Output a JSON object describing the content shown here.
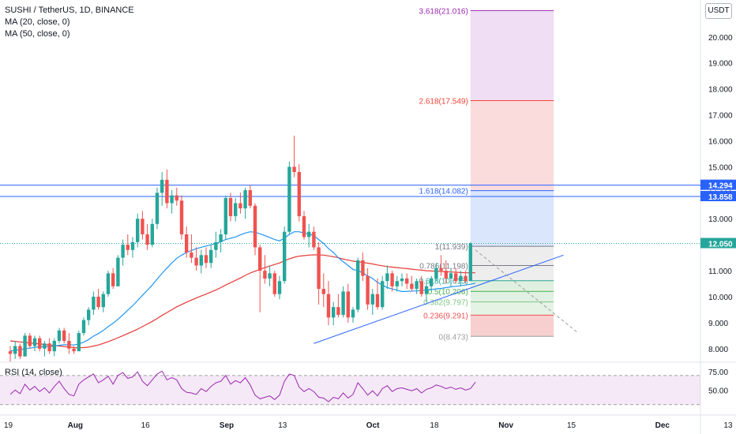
{
  "header": {
    "symbol_line": "SUSHI / TetherUS, 1D, BINANCE",
    "ma20_label": "MA (20, close, 0)",
    "ma50_label": "MA (50, close, 0)",
    "currency_badge": "USDT",
    "rsi_label": "RSI (14, close)"
  },
  "colors": {
    "up": "#26a69a",
    "down": "#ef5350",
    "ma20": "#2196f3",
    "ma50": "#e53935",
    "hline": "#2962ff",
    "trend": "#2962ff",
    "rsi": "#9c27b0"
  },
  "chart_data": {
    "type": "candlestick",
    "symbol": "SUSHI / TetherUS",
    "interval": "1D",
    "exchange": "BINANCE",
    "x_tick_labels": [
      "19",
      "Aug",
      "16",
      "Sep",
      "13",
      "Oct",
      "18",
      "Nov",
      "15",
      "Dec",
      "13"
    ],
    "x_tick_days": [
      0,
      13,
      28,
      44,
      56,
      74,
      87,
      101,
      115,
      133,
      147
    ],
    "y_ticks": [
      "20.000",
      "19.000",
      "18.000",
      "17.000",
      "16.000",
      "15.000",
      "14.000",
      "13.000",
      "11.000",
      "10.000",
      "9.000",
      "8.000"
    ],
    "y_range": [
      7.6,
      21.3
    ],
    "price_labels": [
      {
        "label": "14.294",
        "value": 14.294
      },
      {
        "label": "13.858",
        "value": 13.858
      },
      {
        "label": "12.050",
        "value": 12.05
      }
    ],
    "horizontal_lines": [
      14.294,
      13.858
    ],
    "trendline": {
      "from": {
        "day": 62,
        "price": 8.2
      },
      "to": {
        "day": 113,
        "price": 11.6
      }
    },
    "fibonacci": {
      "start_day": 94,
      "end_day": 111,
      "levels": [
        {
          "label": "0(8.473)",
          "ratio": 0,
          "price": 8.473
        },
        {
          "label": "0.236(9.291)",
          "ratio": 0.236,
          "price": 9.291
        },
        {
          "label": "0.382(9.797)",
          "ratio": 0.382,
          "price": 9.797
        },
        {
          "label": "0.5(10.206)",
          "ratio": 0.5,
          "price": 10.206
        },
        {
          "label": "0.618(10.615)",
          "ratio": 0.618,
          "price": 10.615
        },
        {
          "label": "0.786(11.198)",
          "ratio": 0.786,
          "price": 11.198
        },
        {
          "label": "1(11.939)",
          "ratio": 1,
          "price": 11.939
        },
        {
          "label": "1.618(14.082)",
          "ratio": 1.618,
          "price": 14.082
        },
        {
          "label": "2.618(17.549)",
          "ratio": 2.618,
          "price": 17.549
        },
        {
          "label": "3.618(21.016)",
          "ratio": 3.618,
          "price": 21.016
        }
      ]
    },
    "projection_line": {
      "from": {
        "day": 95,
        "price": 11.8
      },
      "to": {
        "day": 116,
        "price": 8.6
      }
    },
    "candles": [
      {
        "o": 7.9,
        "h": 8.1,
        "l": 7.5,
        "c": 7.8
      },
      {
        "o": 7.8,
        "h": 8.3,
        "l": 7.6,
        "c": 8.1
      },
      {
        "o": 8.1,
        "h": 8.2,
        "l": 7.6,
        "c": 7.7
      },
      {
        "o": 7.7,
        "h": 8.6,
        "l": 7.7,
        "c": 8.5
      },
      {
        "o": 8.5,
        "h": 8.6,
        "l": 8.0,
        "c": 8.1
      },
      {
        "o": 8.1,
        "h": 8.5,
        "l": 7.9,
        "c": 8.4
      },
      {
        "o": 8.4,
        "h": 8.5,
        "l": 7.9,
        "c": 8.0
      },
      {
        "o": 8.0,
        "h": 8.3,
        "l": 7.7,
        "c": 8.2
      },
      {
        "o": 8.2,
        "h": 8.4,
        "l": 7.8,
        "c": 7.9
      },
      {
        "o": 7.9,
        "h": 8.4,
        "l": 7.7,
        "c": 8.3
      },
      {
        "o": 8.3,
        "h": 8.8,
        "l": 8.2,
        "c": 8.7
      },
      {
        "o": 8.7,
        "h": 8.8,
        "l": 8.2,
        "c": 8.3
      },
      {
        "o": 8.3,
        "h": 8.6,
        "l": 7.8,
        "c": 8.0
      },
      {
        "o": 8.0,
        "h": 8.1,
        "l": 7.8,
        "c": 7.9
      },
      {
        "o": 7.9,
        "h": 8.7,
        "l": 7.9,
        "c": 8.6
      },
      {
        "o": 8.6,
        "h": 9.2,
        "l": 8.5,
        "c": 9.1
      },
      {
        "o": 9.1,
        "h": 9.6,
        "l": 8.9,
        "c": 9.5
      },
      {
        "o": 9.5,
        "h": 10.2,
        "l": 9.3,
        "c": 10.0
      },
      {
        "o": 10.0,
        "h": 10.3,
        "l": 9.5,
        "c": 9.6
      },
      {
        "o": 9.6,
        "h": 10.2,
        "l": 9.4,
        "c": 10.1
      },
      {
        "o": 10.1,
        "h": 11.0,
        "l": 10.0,
        "c": 10.9
      },
      {
        "o": 10.9,
        "h": 11.1,
        "l": 10.3,
        "c": 10.4
      },
      {
        "o": 10.4,
        "h": 11.6,
        "l": 10.4,
        "c": 11.5
      },
      {
        "o": 11.5,
        "h": 12.2,
        "l": 11.2,
        "c": 12.0
      },
      {
        "o": 12.0,
        "h": 12.4,
        "l": 11.6,
        "c": 11.8
      },
      {
        "o": 11.8,
        "h": 12.3,
        "l": 11.5,
        "c": 12.1
      },
      {
        "o": 12.1,
        "h": 13.2,
        "l": 11.9,
        "c": 13.0
      },
      {
        "o": 13.0,
        "h": 13.3,
        "l": 12.2,
        "c": 12.4
      },
      {
        "o": 12.4,
        "h": 12.8,
        "l": 11.8,
        "c": 12.0
      },
      {
        "o": 12.0,
        "h": 13.0,
        "l": 11.9,
        "c": 12.8
      },
      {
        "o": 12.8,
        "h": 14.2,
        "l": 12.6,
        "c": 14.0
      },
      {
        "o": 14.0,
        "h": 14.8,
        "l": 13.5,
        "c": 14.5
      },
      {
        "o": 14.5,
        "h": 14.9,
        "l": 13.4,
        "c": 13.6
      },
      {
        "o": 13.6,
        "h": 14.1,
        "l": 13.2,
        "c": 13.9
      },
      {
        "o": 13.9,
        "h": 14.2,
        "l": 13.5,
        "c": 13.7
      },
      {
        "o": 13.7,
        "h": 13.9,
        "l": 12.2,
        "c": 12.4
      },
      {
        "o": 12.4,
        "h": 12.7,
        "l": 11.5,
        "c": 11.7
      },
      {
        "o": 11.7,
        "h": 12.4,
        "l": 11.3,
        "c": 11.5
      },
      {
        "o": 11.5,
        "h": 11.9,
        "l": 11.0,
        "c": 11.2
      },
      {
        "o": 11.2,
        "h": 11.8,
        "l": 10.9,
        "c": 11.6
      },
      {
        "o": 11.6,
        "h": 11.9,
        "l": 11.1,
        "c": 11.3
      },
      {
        "o": 11.3,
        "h": 12.0,
        "l": 11.1,
        "c": 11.8
      },
      {
        "o": 11.8,
        "h": 12.5,
        "l": 11.5,
        "c": 12.1
      },
      {
        "o": 12.1,
        "h": 12.6,
        "l": 11.7,
        "c": 12.4
      },
      {
        "o": 12.4,
        "h": 13.9,
        "l": 12.2,
        "c": 13.8
      },
      {
        "o": 13.8,
        "h": 14.0,
        "l": 12.9,
        "c": 13.1
      },
      {
        "o": 13.1,
        "h": 13.8,
        "l": 12.9,
        "c": 13.6
      },
      {
        "o": 13.6,
        "h": 14.0,
        "l": 13.2,
        "c": 13.4
      },
      {
        "o": 13.4,
        "h": 14.2,
        "l": 13.0,
        "c": 14.1
      },
      {
        "o": 14.1,
        "h": 14.3,
        "l": 13.4,
        "c": 13.5
      },
      {
        "o": 13.5,
        "h": 13.6,
        "l": 11.6,
        "c": 11.9
      },
      {
        "o": 11.9,
        "h": 12.0,
        "l": 9.4,
        "c": 11.0
      },
      {
        "o": 11.0,
        "h": 11.6,
        "l": 10.5,
        "c": 10.7
      },
      {
        "o": 10.7,
        "h": 11.2,
        "l": 10.4,
        "c": 10.9
      },
      {
        "o": 10.9,
        "h": 11.0,
        "l": 10.0,
        "c": 10.1
      },
      {
        "o": 10.1,
        "h": 10.8,
        "l": 9.9,
        "c": 10.6
      },
      {
        "o": 10.6,
        "h": 12.7,
        "l": 10.5,
        "c": 12.5
      },
      {
        "o": 12.5,
        "h": 15.2,
        "l": 12.4,
        "c": 15.0
      },
      {
        "o": 15.0,
        "h": 16.2,
        "l": 14.6,
        "c": 14.8
      },
      {
        "o": 14.8,
        "h": 15.1,
        "l": 12.9,
        "c": 13.1
      },
      {
        "o": 13.1,
        "h": 13.3,
        "l": 12.2,
        "c": 12.3
      },
      {
        "o": 12.3,
        "h": 12.8,
        "l": 11.9,
        "c": 12.5
      },
      {
        "o": 12.5,
        "h": 12.7,
        "l": 11.8,
        "c": 11.9
      },
      {
        "o": 11.9,
        "h": 12.1,
        "l": 9.7,
        "c": 10.3
      },
      {
        "o": 10.3,
        "h": 10.9,
        "l": 9.6,
        "c": 10.1
      },
      {
        "o": 10.1,
        "h": 10.6,
        "l": 8.9,
        "c": 9.2
      },
      {
        "o": 9.2,
        "h": 9.8,
        "l": 8.9,
        "c": 9.6
      },
      {
        "o": 9.6,
        "h": 10.1,
        "l": 9.2,
        "c": 9.3
      },
      {
        "o": 9.3,
        "h": 10.4,
        "l": 9.2,
        "c": 10.2
      },
      {
        "o": 10.2,
        "h": 10.5,
        "l": 9.0,
        "c": 9.2
      },
      {
        "o": 9.2,
        "h": 9.6,
        "l": 9.0,
        "c": 9.5
      },
      {
        "o": 9.5,
        "h": 11.5,
        "l": 9.4,
        "c": 11.4
      },
      {
        "o": 11.4,
        "h": 11.7,
        "l": 10.6,
        "c": 10.8
      },
      {
        "o": 10.8,
        "h": 11.1,
        "l": 9.5,
        "c": 9.7
      },
      {
        "o": 9.7,
        "h": 10.3,
        "l": 9.3,
        "c": 10.1
      },
      {
        "o": 10.1,
        "h": 10.7,
        "l": 9.5,
        "c": 9.6
      },
      {
        "o": 9.6,
        "h": 10.8,
        "l": 9.5,
        "c": 10.6
      },
      {
        "o": 10.6,
        "h": 11.2,
        "l": 10.3,
        "c": 10.9
      },
      {
        "o": 10.9,
        "h": 11.0,
        "l": 10.2,
        "c": 10.4
      },
      {
        "o": 10.4,
        "h": 10.8,
        "l": 10.2,
        "c": 10.6
      },
      {
        "o": 10.6,
        "h": 10.9,
        "l": 10.4,
        "c": 10.7
      },
      {
        "o": 10.7,
        "h": 10.9,
        "l": 10.3,
        "c": 10.5
      },
      {
        "o": 10.5,
        "h": 10.8,
        "l": 10.2,
        "c": 10.3
      },
      {
        "o": 10.3,
        "h": 10.7,
        "l": 10.1,
        "c": 10.6
      },
      {
        "o": 10.6,
        "h": 10.8,
        "l": 10.0,
        "c": 10.1
      },
      {
        "o": 10.1,
        "h": 10.6,
        "l": 9.8,
        "c": 10.4
      },
      {
        "o": 10.4,
        "h": 10.8,
        "l": 10.2,
        "c": 10.7
      },
      {
        "o": 10.7,
        "h": 11.3,
        "l": 10.6,
        "c": 11.1
      },
      {
        "o": 11.1,
        "h": 11.6,
        "l": 10.8,
        "c": 11.0
      },
      {
        "o": 11.0,
        "h": 11.4,
        "l": 10.5,
        "c": 10.7
      },
      {
        "o": 10.7,
        "h": 11.1,
        "l": 10.4,
        "c": 10.9
      },
      {
        "o": 10.9,
        "h": 11.1,
        "l": 10.5,
        "c": 10.6
      },
      {
        "o": 10.6,
        "h": 11.0,
        "l": 10.4,
        "c": 10.8
      },
      {
        "o": 10.8,
        "h": 11.0,
        "l": 10.5,
        "c": 10.6
      },
      {
        "o": 10.6,
        "h": 12.1,
        "l": 10.6,
        "c": 12.05
      }
    ],
    "ma20": [
      7.9,
      7.95,
      7.95,
      8.0,
      8.02,
      8.05,
      8.07,
      8.08,
      8.08,
      8.1,
      8.13,
      8.15,
      8.15,
      8.14,
      8.18,
      8.25,
      8.35,
      8.48,
      8.58,
      8.7,
      8.85,
      8.98,
      9.13,
      9.3,
      9.48,
      9.65,
      9.85,
      10.05,
      10.25,
      10.45,
      10.68,
      10.9,
      11.1,
      11.3,
      11.48,
      11.6,
      11.7,
      11.78,
      11.85,
      11.9,
      11.95,
      12.0,
      12.05,
      12.12,
      12.2,
      12.25,
      12.3,
      12.38,
      12.45,
      12.5,
      12.48,
      12.42,
      12.35,
      12.28,
      12.2,
      12.15,
      12.25,
      12.4,
      12.5,
      12.5,
      12.45,
      12.42,
      12.35,
      12.2,
      12.05,
      11.85,
      11.7,
      11.5,
      11.35,
      11.2,
      11.05,
      11.0,
      10.92,
      10.8,
      10.7,
      10.55,
      10.45,
      10.35,
      10.3,
      10.25,
      10.2,
      10.2,
      10.22,
      10.22,
      10.25,
      10.25,
      10.28,
      10.3,
      10.32,
      10.35,
      10.38,
      10.4,
      10.42,
      10.45,
      10.48,
      10.52
    ],
    "ma50": [
      8.3,
      8.28,
      8.26,
      8.24,
      8.22,
      8.2,
      8.18,
      8.16,
      8.14,
      8.12,
      8.1,
      8.08,
      8.06,
      8.04,
      8.03,
      8.04,
      8.06,
      8.1,
      8.14,
      8.2,
      8.27,
      8.34,
      8.42,
      8.5,
      8.58,
      8.66,
      8.75,
      8.85,
      8.95,
      9.05,
      9.16,
      9.28,
      9.39,
      9.5,
      9.61,
      9.7,
      9.79,
      9.87,
      9.95,
      10.03,
      10.1,
      10.18,
      10.26,
      10.35,
      10.45,
      10.54,
      10.63,
      10.72,
      10.82,
      10.91,
      10.98,
      11.05,
      11.12,
      11.18,
      11.24,
      11.3,
      11.38,
      11.46,
      11.52,
      11.56,
      11.58,
      11.6,
      11.61,
      11.61,
      11.6,
      11.57,
      11.54,
      11.5,
      11.45,
      11.41,
      11.37,
      11.34,
      11.32,
      11.29,
      11.26,
      11.22,
      11.19,
      11.16,
      11.14,
      11.12,
      11.1,
      11.08,
      11.06,
      11.04,
      11.02,
      11.0,
      10.99,
      10.98,
      10.97,
      10.96,
      10.95,
      10.94,
      10.93,
      10.92,
      10.92,
      10.92
    ],
    "rsi": {
      "y_ticks": [
        "75.00",
        "50.00"
      ],
      "range": [
        20,
        85
      ],
      "band": [
        30,
        70
      ],
      "values": [
        44,
        50,
        45,
        58,
        50,
        55,
        48,
        53,
        46,
        55,
        62,
        52,
        44,
        42,
        58,
        64,
        68,
        72,
        60,
        64,
        69,
        58,
        70,
        74,
        66,
        68,
        75,
        62,
        56,
        64,
        72,
        76,
        64,
        67,
        64,
        52,
        47,
        46,
        44,
        52,
        48,
        55,
        60,
        62,
        70,
        58,
        63,
        60,
        67,
        57,
        43,
        38,
        40,
        42,
        37,
        43,
        62,
        72,
        70,
        54,
        48,
        52,
        48,
        40,
        39,
        34,
        40,
        38,
        46,
        39,
        44,
        60,
        52,
        43,
        49,
        42,
        52,
        56,
        48,
        52,
        53,
        51,
        49,
        52,
        46,
        51,
        53,
        57,
        55,
        52,
        54,
        51,
        53,
        50,
        52,
        61
      ]
    }
  }
}
